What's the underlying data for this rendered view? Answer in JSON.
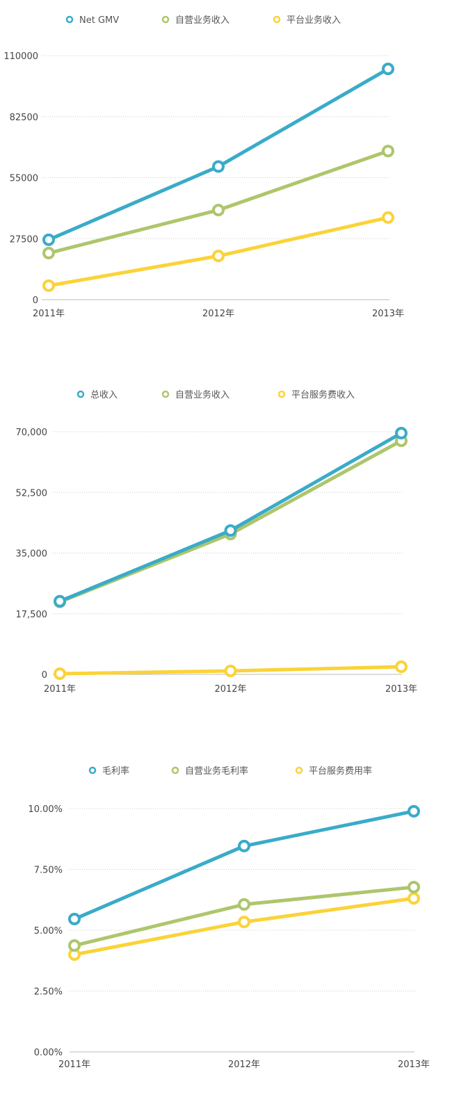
{
  "colors": {
    "blue": "#3aabc9",
    "green": "#adc66b",
    "yellow": "#fbd338"
  },
  "chart_data": [
    {
      "type": "line",
      "categories": [
        "2011年",
        "2012年",
        "2013年"
      ],
      "ylim": [
        0,
        110000
      ],
      "yticks": [
        "0",
        "27500",
        "55000",
        "82500",
        "110000"
      ],
      "grid": true,
      "legend": "top",
      "series": [
        {
          "name": "Net GMV",
          "color": "#3aabc9",
          "values": [
            27000,
            60000,
            104000
          ]
        },
        {
          "name": "自营业务收入",
          "color": "#adc66b",
          "values": [
            21000,
            40400,
            67000
          ]
        },
        {
          "name": "平台业务收入",
          "color": "#fbd338",
          "values": [
            6300,
            19700,
            37000
          ]
        }
      ]
    },
    {
      "type": "line",
      "categories": [
        "2011年",
        "2012年",
        "2013年"
      ],
      "ylim": [
        0,
        70000
      ],
      "yticks": [
        "0",
        "17,500",
        "35,000",
        "52,500",
        "70,000"
      ],
      "grid": true,
      "legend": "top",
      "series": [
        {
          "name": "总收入",
          "color": "#3aabc9",
          "values": [
            21100,
            41500,
            69600
          ]
        },
        {
          "name": "自营业务收入",
          "color": "#adc66b",
          "values": [
            20900,
            40500,
            67400
          ]
        },
        {
          "name": "平台服务费收入",
          "color": "#fbd338",
          "values": [
            200,
            1000,
            2200
          ]
        }
      ]
    },
    {
      "type": "line",
      "categories": [
        "2011年",
        "2012年",
        "2013年"
      ],
      "ylim": [
        0,
        10
      ],
      "yticks": [
        "0.00%",
        "2.50%",
        "5.00%",
        "7.50%",
        "10.00%"
      ],
      "grid": true,
      "legend": "top",
      "series": [
        {
          "name": "毛利率",
          "color": "#3aabc9",
          "values": [
            5.46,
            8.46,
            9.89
          ]
        },
        {
          "name": "自营业务毛利率",
          "color": "#adc66b",
          "values": [
            4.37,
            6.06,
            6.77
          ]
        },
        {
          "name": "平台服务费用率",
          "color": "#fbd338",
          "values": [
            4.0,
            5.34,
            6.31
          ]
        }
      ]
    }
  ]
}
